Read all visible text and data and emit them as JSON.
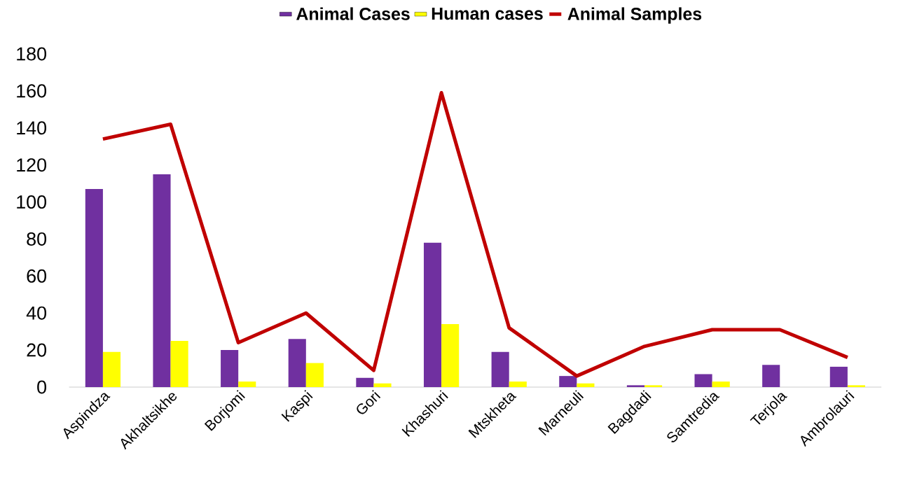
{
  "chart_data": {
    "type": "bar",
    "categories": [
      "Aspindza",
      "Akhaltsikhe",
      "Borjomi",
      "Kaspi",
      "Gori",
      "Khashuri",
      "Mtskheta",
      "Marneuli",
      "Bagdadi",
      "Samtredia",
      "Terjola",
      "Ambrolauri"
    ],
    "series": [
      {
        "name": "Animal Cases",
        "color": "#7030a0",
        "values": [
          107,
          115,
          20,
          26,
          5,
          78,
          19,
          6,
          1,
          7,
          12,
          11
        ]
      },
      {
        "name": "Human cases",
        "color": "#ffff00",
        "values": [
          19,
          25,
          3,
          13,
          2,
          34,
          3,
          2,
          1,
          3,
          0,
          1
        ]
      },
      {
        "name": "Animal Samples",
        "type": "line",
        "color": "#c00000",
        "values": [
          134,
          142,
          24,
          40,
          9,
          159,
          32,
          6,
          22,
          31,
          31,
          16
        ]
      }
    ],
    "ylim": [
      0,
      180
    ],
    "yticks": [
      0,
      20,
      40,
      60,
      80,
      100,
      120,
      140,
      160,
      180
    ],
    "legend": "top"
  }
}
